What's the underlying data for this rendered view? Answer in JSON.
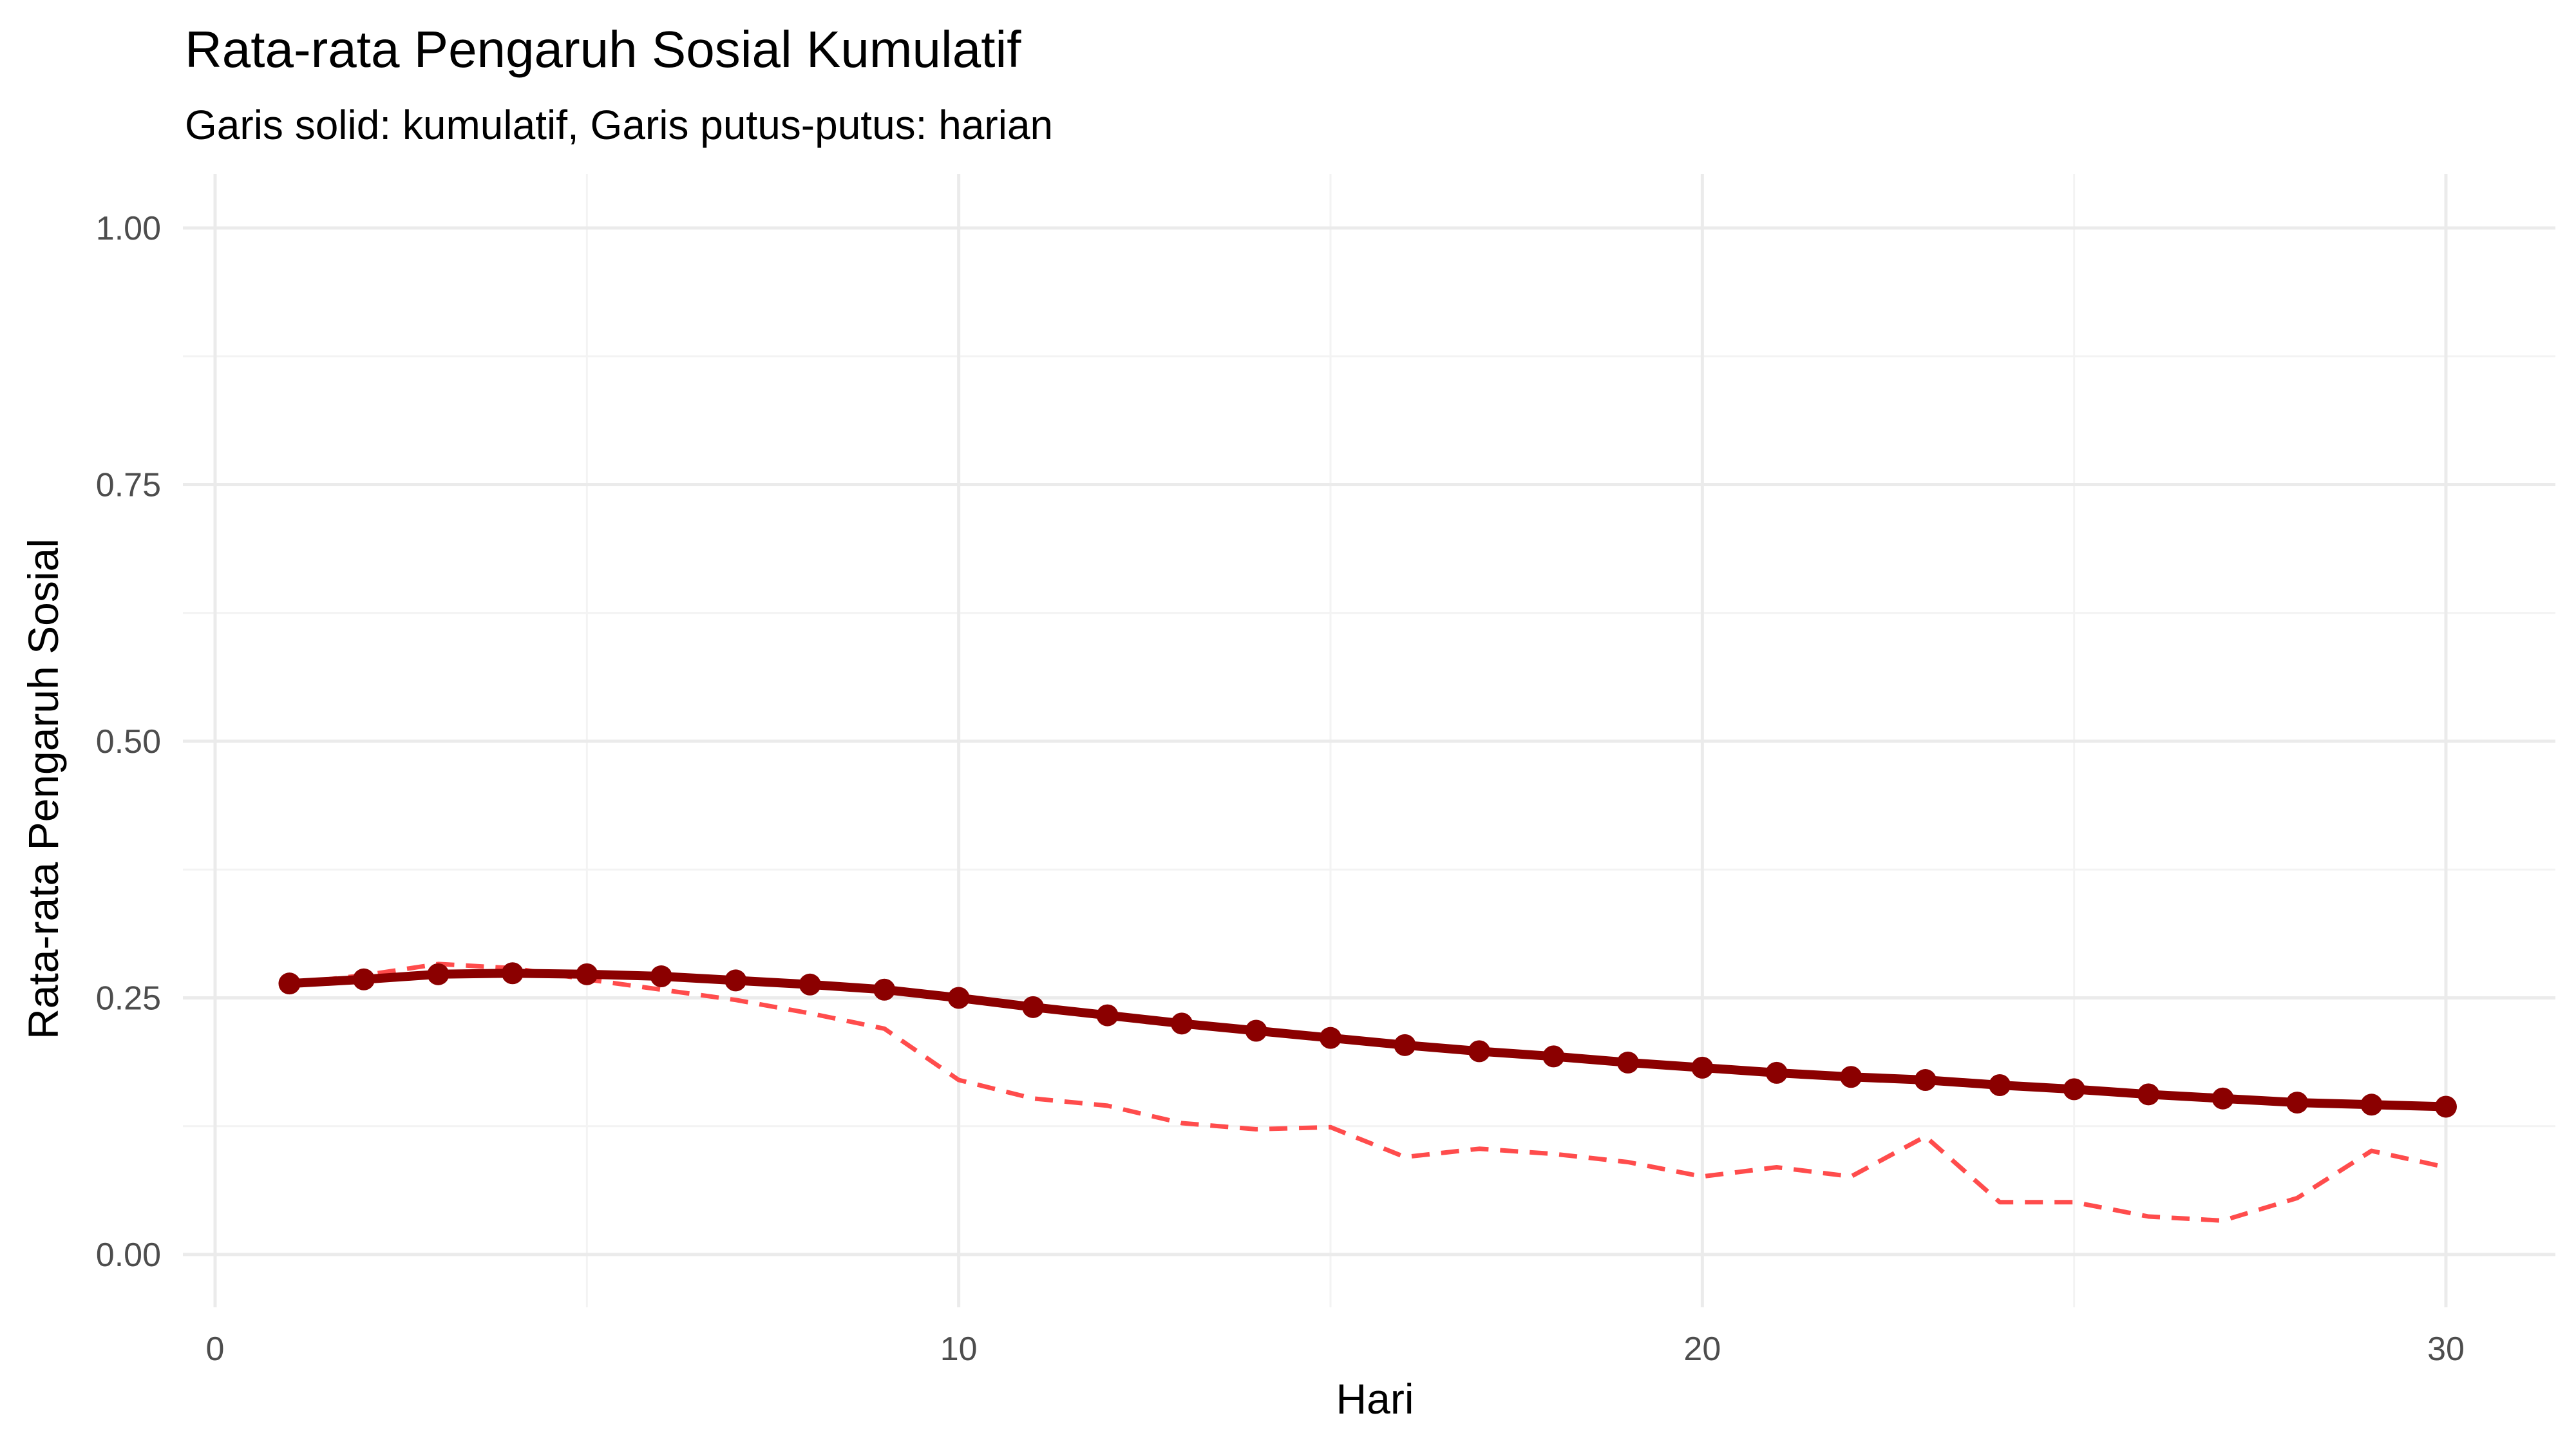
{
  "chart_data": {
    "type": "line",
    "title": "Rata-rata Pengaruh Sosial Kumulatif",
    "subtitle": "Garis solid: kumulatif, Garis putus-putus: harian",
    "xlabel": "Hari",
    "ylabel": "Rata-rata Pengaruh Sosial",
    "xlim": [
      0,
      30
    ],
    "ylim": [
      0,
      1
    ],
    "x_ticks": [
      0,
      10,
      20,
      30
    ],
    "y_ticks": [
      0,
      0.25,
      0.5,
      0.75,
      1
    ],
    "y_tick_labels": [
      "0.00",
      "0.25",
      "0.50",
      "0.75",
      "1.00"
    ],
    "grid": true,
    "legend": "none",
    "x": [
      1,
      2,
      3,
      4,
      5,
      6,
      7,
      8,
      9,
      10,
      11,
      12,
      13,
      14,
      15,
      16,
      17,
      18,
      19,
      20,
      21,
      22,
      23,
      24,
      25,
      26,
      27,
      28,
      29,
      30
    ],
    "series": [
      {
        "style": "solid-with-points",
        "color": "#8b0000",
        "values": [
          0.264,
          0.268,
          0.273,
          0.274,
          0.273,
          0.271,
          0.267,
          0.263,
          0.258,
          0.25,
          0.241,
          0.233,
          0.225,
          0.218,
          0.211,
          0.204,
          0.198,
          0.193,
          0.187,
          0.182,
          0.177,
          0.173,
          0.17,
          0.165,
          0.161,
          0.156,
          0.152,
          0.148,
          0.146,
          0.144
        ]
      },
      {
        "style": "dashed",
        "color": "#ff4c4c",
        "values": [
          0.264,
          0.272,
          0.283,
          0.279,
          0.268,
          0.258,
          0.248,
          0.235,
          0.22,
          0.17,
          0.152,
          0.145,
          0.128,
          0.122,
          0.124,
          0.095,
          0.103,
          0.098,
          0.09,
          0.076,
          0.085,
          0.076,
          0.115,
          0.051,
          0.051,
          0.037,
          0.033,
          0.055,
          0.101,
          0.085
        ]
      }
    ]
  }
}
